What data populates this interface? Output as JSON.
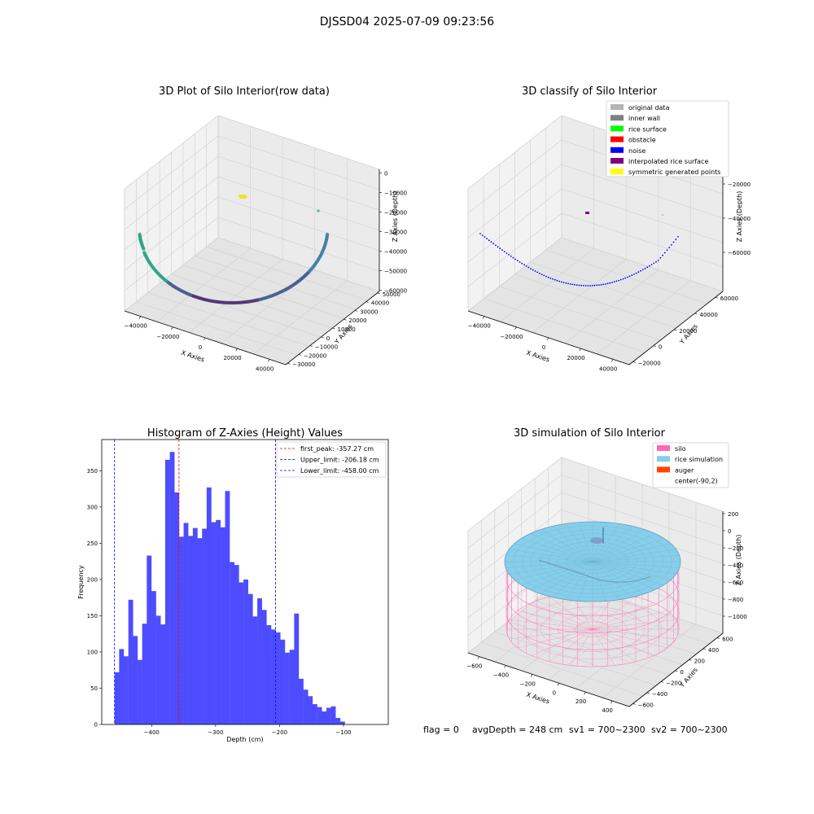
{
  "figure": {
    "suptitle": "DJSSD04 2025-07-09 09:23:56",
    "status": {
      "flag": "flag = 0",
      "avg_depth": "avgDepth = 248 cm",
      "sv1": "sv1 = 700~2300",
      "sv2": "sv2 = 700~2300"
    }
  },
  "chart_data": [
    {
      "type": "scatter",
      "projection": "3d",
      "title": "3D Plot of Silo Interior(row data)",
      "xlabel": "X Axies",
      "ylabel": "Y Axies",
      "zlabel": "Z Axies (Depth)",
      "xticks": [
        "−40000",
        "−20000",
        "0",
        "20000",
        "40000"
      ],
      "yticks": [
        "−30000",
        "−20000",
        "−10000",
        "0",
        "10000",
        "20000",
        "30000",
        "40000",
        "50000"
      ],
      "zticks": [
        "0",
        "−10000",
        "−20000",
        "−30000",
        "−40000",
        "−50000",
        "−60000"
      ],
      "xlim": [
        -50000,
        45000
      ],
      "ylim": [
        -30000,
        50000
      ],
      "zlim": [
        -65000,
        0
      ],
      "colormap": "viridis",
      "grid": true
    },
    {
      "type": "scatter",
      "projection": "3d",
      "title": "3D classify of Silo Interior",
      "xlabel": "X Axies",
      "ylabel": "Y Axies",
      "zlabel": "Z Axies (Depth)",
      "xticks": [
        "−40000",
        "−20000",
        "0",
        "20000",
        "40000"
      ],
      "yticks": [
        "−20000",
        "0",
        "20000",
        "40000",
        "60000"
      ],
      "zticks": [
        "−20000",
        "−40000",
        "−60000"
      ],
      "legend_position": "top-right",
      "legend": [
        {
          "label": "original data",
          "color": "#b3b3b3"
        },
        {
          "label": "inner wall",
          "color": "#808080"
        },
        {
          "label": "rice surface",
          "color": "#00ff00"
        },
        {
          "label": "obstacle",
          "color": "#ff0000"
        },
        {
          "label": "noise",
          "color": "#0000ff"
        },
        {
          "label": "interpolated rice surface",
          "color": "#800080"
        },
        {
          "label": "symmetric generated points",
          "color": "#ffff00"
        }
      ],
      "grid": true
    },
    {
      "type": "bar",
      "title": "Histogram of Z-Axies (Height) Values",
      "xlabel": "Depth (cm)",
      "ylabel": "Frequency",
      "bin_start": -458,
      "bin_width": 7.2,
      "values": [
        72,
        104,
        94,
        172,
        122,
        89,
        139,
        233,
        184,
        150,
        138,
        365,
        376,
        320,
        259,
        278,
        260,
        271,
        257,
        270,
        327,
        279,
        282,
        272,
        322,
        224,
        220,
        196,
        200,
        180,
        149,
        174,
        158,
        137,
        131,
        127,
        117,
        99,
        103,
        153,
        63,
        48,
        39,
        28,
        24,
        18,
        23,
        25,
        9,
        4
      ],
      "xticks": [
        -400,
        -300,
        -200,
        -100
      ],
      "xtick_labels": [
        "−400",
        "−300",
        "−200",
        "−100"
      ],
      "yticks": [
        0,
        50,
        100,
        150,
        200,
        250,
        300,
        350
      ],
      "xlim": [
        -478,
        -30
      ],
      "ylim": [
        0,
        393
      ],
      "bar_color": "#4d4dff",
      "vlines": [
        {
          "x": -357.27,
          "color": "#ff0000",
          "label": "first_peak: -357.27 cm"
        },
        {
          "x": -206.18,
          "color": "#0000ff",
          "label": "Upper_limit: -206.18 cm"
        },
        {
          "x": -458.0,
          "color": "#0000ff",
          "label": "Lower_limit: -458.00 cm"
        }
      ],
      "legend_position": "top-right",
      "grid": false
    },
    {
      "type": "surface",
      "projection": "3d",
      "title": "3D simulation of Silo Interior",
      "xlabel": "X Axies",
      "ylabel": "Y Axies",
      "zlabel": "Z Axies (Depth)",
      "xticks": [
        "−600",
        "−400",
        "−200",
        "0",
        "200",
        "400"
      ],
      "yticks": [
        "−600",
        "−400",
        "−200",
        "0",
        "200",
        "400",
        "600"
      ],
      "zticks": [
        "200",
        "0",
        "−200",
        "−400",
        "−600",
        "−800",
        "−1000"
      ],
      "legend_position": "top-right",
      "legend": [
        {
          "label": "silo",
          "color": "#ff69b4"
        },
        {
          "label": "rice simulation",
          "color": "#87ceeb"
        },
        {
          "label": "auger",
          "color": "#ff4500"
        },
        {
          "label": "center(-90,2)",
          "color": ""
        }
      ],
      "grid": true
    }
  ]
}
